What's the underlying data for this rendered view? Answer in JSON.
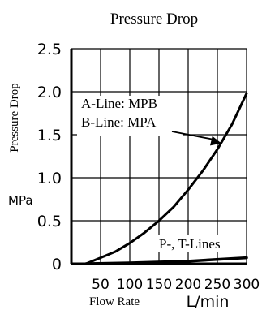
{
  "chart_data": {
    "type": "line",
    "title": "Pressure Drop",
    "ylabel": "Pressure Drop",
    "yunit": "MPa",
    "xlabel": "Flow Rate",
    "xunit": "L/min",
    "xlim": [
      0,
      300
    ],
    "ylim": [
      0,
      2.5
    ],
    "grid": true,
    "x_ticks": [
      50,
      100,
      150,
      200,
      250,
      300
    ],
    "x_tick_labels": [
      "50",
      "100",
      "150",
      "200",
      "250",
      "300"
    ],
    "y_ticks": [
      0,
      0.5,
      1.0,
      1.5,
      2.0,
      2.5
    ],
    "y_tick_labels": [
      "0",
      "0.5",
      "1.0",
      "1.5",
      "2.0",
      "2.5"
    ],
    "series": [
      {
        "name": "A-Line: MPB / B-Line: MPA",
        "x": [
          25,
          50,
          75,
          100,
          125,
          150,
          175,
          200,
          225,
          250,
          275,
          300
        ],
        "y": [
          0.0,
          0.07,
          0.14,
          0.24,
          0.36,
          0.5,
          0.66,
          0.86,
          1.08,
          1.33,
          1.62,
          1.98
        ]
      },
      {
        "name": "P-, T-Lines",
        "x": [
          25,
          100,
          200,
          300
        ],
        "y": [
          0.0,
          0.01,
          0.03,
          0.07
        ]
      }
    ],
    "annotations": [
      {
        "lines": [
          "A-Line: MPB",
          "B-Line: MPA"
        ],
        "arrow_to": [
          257,
          1.4
        ]
      },
      {
        "lines": [
          "P-, T-Lines"
        ]
      }
    ]
  }
}
